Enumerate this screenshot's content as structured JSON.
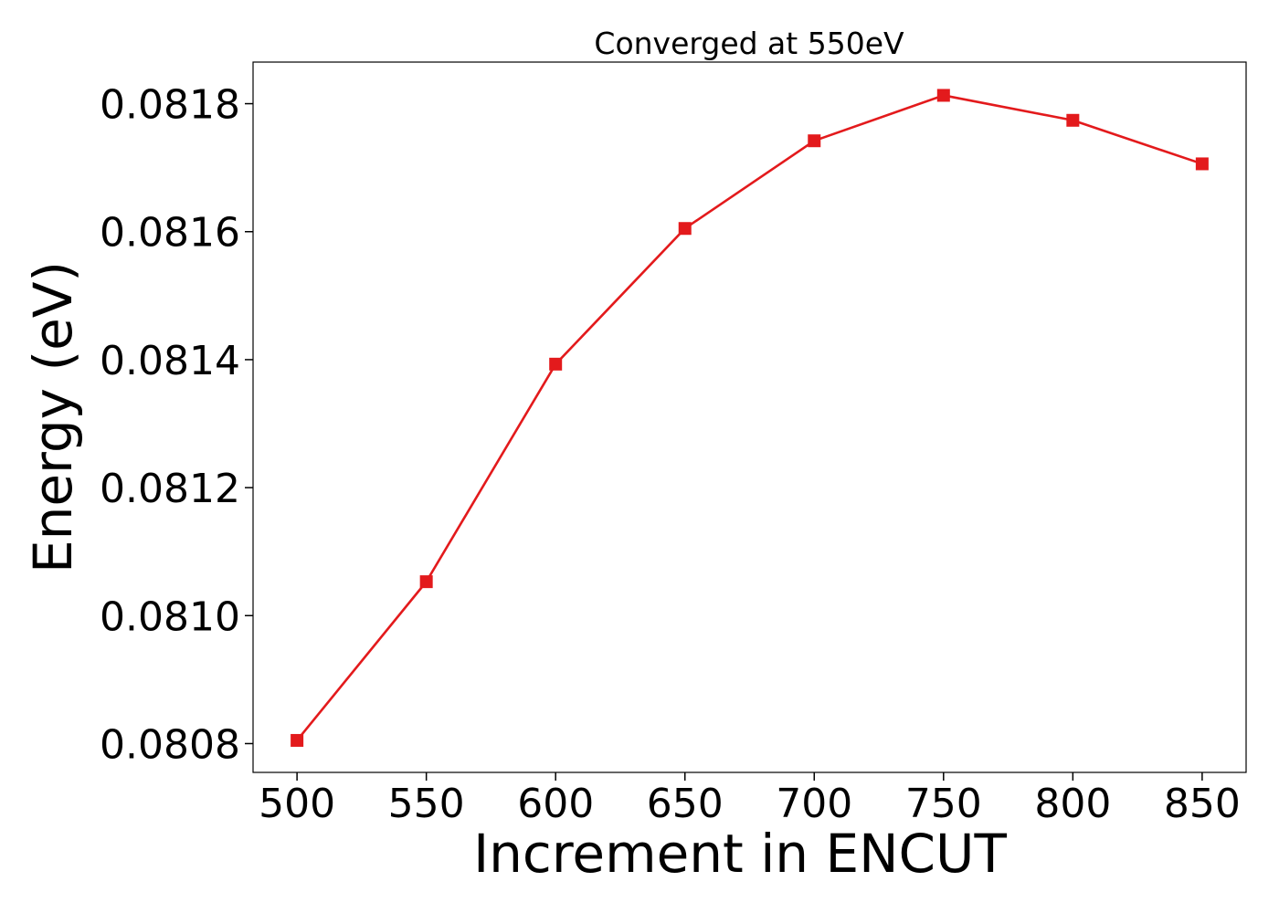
{
  "chart_data": {
    "type": "line",
    "title": "Converged at 550eV",
    "xlabel": "Increment in ENCUT",
    "ylabel": "Energy (eV)",
    "x": [
      500,
      550,
      600,
      650,
      700,
      750,
      800,
      850
    ],
    "series": [
      {
        "values": [
          0.080805,
          0.081053,
          0.081393,
          0.081605,
          0.081742,
          0.081813,
          0.081774,
          0.081706
        ],
        "color": "#e31a1c",
        "marker": "square"
      }
    ],
    "xticks": [
      500,
      550,
      600,
      650,
      700,
      750,
      800,
      850
    ],
    "xtick_labels": [
      "500",
      "550",
      "600",
      "650",
      "700",
      "750",
      "800",
      "850"
    ],
    "yticks": [
      0.0808,
      0.081,
      0.0812,
      0.0814,
      0.0816,
      0.0818
    ],
    "ytick_labels": [
      "0.0808",
      "0.0810",
      "0.0812",
      "0.0814",
      "0.0816",
      "0.0818"
    ],
    "xlim": [
      483,
      867
    ],
    "ylim": [
      0.080755,
      0.081865
    ],
    "grid": false,
    "legend": false
  }
}
